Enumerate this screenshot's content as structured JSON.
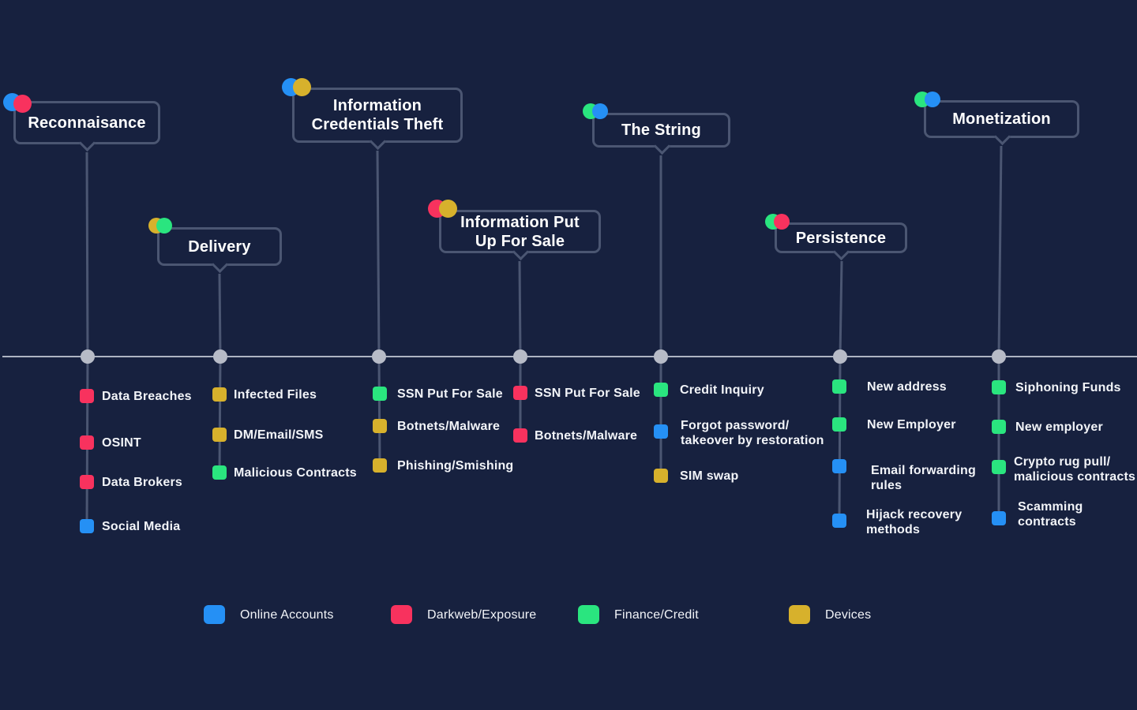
{
  "colors": {
    "online_accounts": "#2590f5",
    "darkweb_exposure": "#f8325e",
    "finance_credit": "#2ae57f",
    "devices": "#d7b12c",
    "line": "#4b5672",
    "axis": "#aeb3c2",
    "node": "#b7bbc7"
  },
  "stages": [
    {
      "name": "Reconnaisance",
      "tags": [
        "online_accounts",
        "darkweb_exposure"
      ],
      "items": [
        {
          "label": "Data Breaches",
          "category": "darkweb_exposure"
        },
        {
          "label": "OSINT",
          "category": "darkweb_exposure"
        },
        {
          "label": "Data Brokers",
          "category": "darkweb_exposure"
        },
        {
          "label": "Social Media",
          "category": "online_accounts"
        }
      ]
    },
    {
      "name": "Delivery",
      "tags": [
        "devices",
        "finance_credit"
      ],
      "items": [
        {
          "label": "Infected Files",
          "category": "devices"
        },
        {
          "label": "DM/Email/SMS",
          "category": "devices"
        },
        {
          "label": "Malicious Contracts",
          "category": "finance_credit"
        }
      ]
    },
    {
      "name": "Information\nCredentials Theft",
      "tags": [
        "online_accounts",
        "devices"
      ],
      "items": [
        {
          "label": "SSN Put For Sale",
          "category": "finance_credit"
        },
        {
          "label": "Botnets/Malware",
          "category": "devices"
        },
        {
          "label": "Phishing/Smishing",
          "category": "devices"
        }
      ]
    },
    {
      "name": "Information Put\nUp For Sale",
      "tags": [
        "darkweb_exposure",
        "devices"
      ],
      "items": [
        {
          "label": "SSN Put For Sale",
          "category": "darkweb_exposure"
        },
        {
          "label": "Botnets/Malware",
          "category": "darkweb_exposure"
        }
      ]
    },
    {
      "name": "The String",
      "tags": [
        "finance_credit",
        "online_accounts"
      ],
      "items": [
        {
          "label": "Credit Inquiry",
          "category": "finance_credit"
        },
        {
          "label": "Forgot password/\ntakeover by restoration",
          "category": "online_accounts"
        },
        {
          "label": "SIM swap",
          "category": "devices"
        }
      ]
    },
    {
      "name": "Persistence",
      "tags": [
        "finance_credit",
        "darkweb_exposure"
      ],
      "items": [
        {
          "label": "New address",
          "category": "finance_credit"
        },
        {
          "label": "New Employer",
          "category": "finance_credit"
        },
        {
          "label": "Email forwarding\nrules",
          "category": "online_accounts"
        },
        {
          "label": "Hijack recovery\nmethods",
          "category": "online_accounts"
        }
      ]
    },
    {
      "name": "Monetization",
      "tags": [
        "finance_credit",
        "online_accounts"
      ],
      "items": [
        {
          "label": "Siphoning Funds",
          "category": "finance_credit"
        },
        {
          "label": "New employer",
          "category": "finance_credit"
        },
        {
          "label": "Crypto rug pull/\nmalicious contracts",
          "category": "finance_credit"
        },
        {
          "label": "Scamming\ncontracts",
          "category": "online_accounts"
        }
      ]
    }
  ],
  "legend": [
    {
      "label": "Online Accounts",
      "category": "online_accounts"
    },
    {
      "label": "Darkweb/Exposure",
      "category": "darkweb_exposure"
    },
    {
      "label": "Finance/Credit",
      "category": "finance_credit"
    },
    {
      "label": "Devices",
      "category": "devices"
    }
  ]
}
